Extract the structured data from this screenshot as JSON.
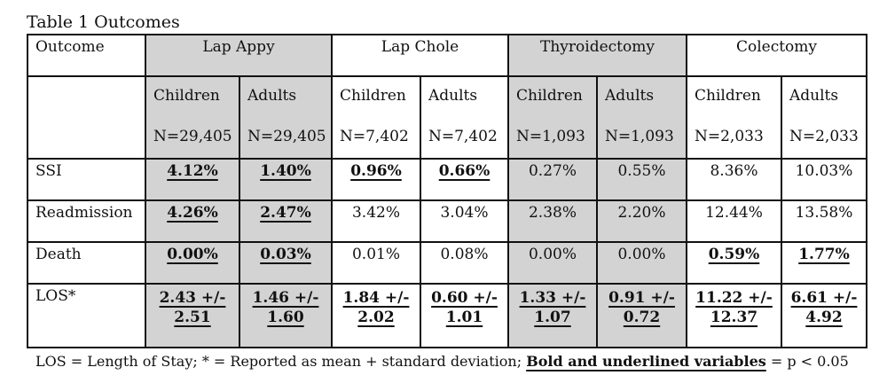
{
  "caption": "Table 1 Outcomes",
  "table": {
    "outcome_header": "Outcome",
    "procedures": [
      "Lap Appy",
      "Lap Chole",
      "Thyroidectomy",
      "Colectomy"
    ],
    "groups": [
      {
        "label": "Children",
        "n": "N=29,405"
      },
      {
        "label": "Adults",
        "n": "N=29,405"
      },
      {
        "label": "Children",
        "n": "N=7,402"
      },
      {
        "label": "Adults",
        "n": "N=7,402"
      },
      {
        "label": "Children",
        "n": "N=1,093"
      },
      {
        "label": "Adults",
        "n": "N=1,093"
      },
      {
        "label": "Children",
        "n": "N=2,033"
      },
      {
        "label": "Adults",
        "n": "N=2,033"
      }
    ],
    "rows": [
      {
        "label": "SSI",
        "values": [
          "4.12%",
          "1.40%",
          "0.96%",
          "0.66%",
          "0.27%",
          "0.55%",
          "8.36%",
          "10.03%"
        ],
        "bold": [
          true,
          true,
          true,
          true,
          false,
          false,
          false,
          false
        ]
      },
      {
        "label": "Readmission",
        "values": [
          "4.26%",
          "2.47%",
          "3.42%",
          "3.04%",
          "2.38%",
          "2.20%",
          "12.44%",
          "13.58%"
        ],
        "bold": [
          true,
          true,
          false,
          false,
          false,
          false,
          false,
          false
        ]
      },
      {
        "label": "Death",
        "values": [
          "0.00%",
          "0.03%",
          "0.01%",
          "0.08%",
          "0.00%",
          "0.00%",
          "0.59%",
          "1.77%"
        ],
        "bold": [
          true,
          true,
          false,
          false,
          false,
          false,
          true,
          true
        ]
      }
    ],
    "los_row": {
      "label": "LOS*",
      "values": [
        {
          "mean": "2.43 +/-",
          "sd": "2.51"
        },
        {
          "mean": "1.46 +/-",
          "sd": "1.60"
        },
        {
          "mean": "1.84 +/-",
          "sd": "2.02"
        },
        {
          "mean": "0.60 +/-",
          "sd": "1.01"
        },
        {
          "mean": "1.33 +/-",
          "sd": "1.07"
        },
        {
          "mean": "0.91 +/-",
          "sd": "0.72"
        },
        {
          "mean": "11.22 +/-",
          "sd": "12.37"
        },
        {
          "mean": "6.61 +/-",
          "sd": "4.92"
        }
      ]
    }
  },
  "footnote": {
    "prefix": "LOS = Length of Stay; * = Reported as mean + standard deviation; ",
    "emphasis": "Bold and underlined variables",
    "suffix": " = p < 0.05"
  },
  "colors": {
    "shade": "#d3d3d3",
    "border": "#111111"
  }
}
